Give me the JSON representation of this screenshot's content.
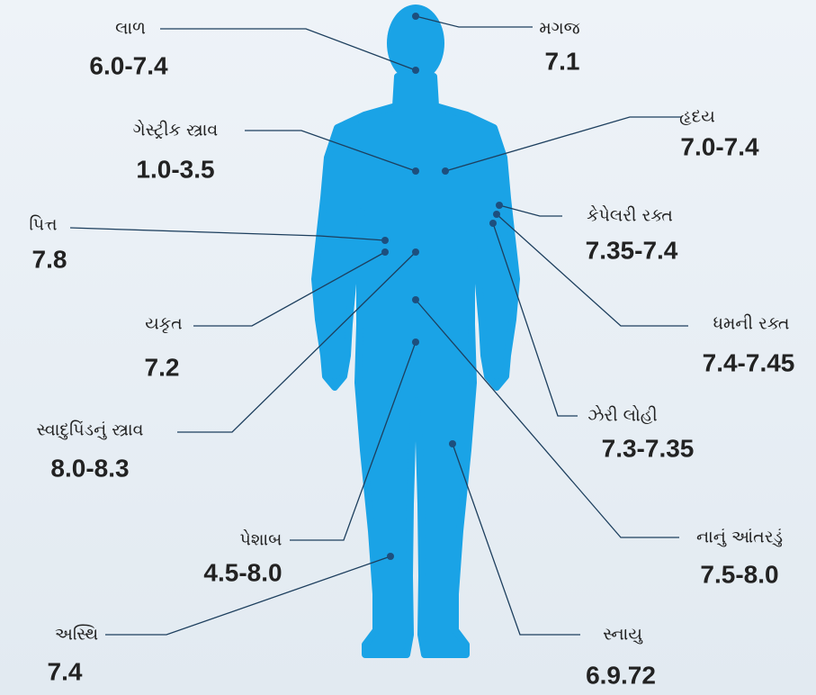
{
  "labels": [
    {
      "name": "લાળ",
      "value": "6.0-7.4"
    },
    {
      "name": "મગજ",
      "value": "7.1"
    },
    {
      "name": "ગેસ્ટ્રીક સ્ત્રાવ",
      "value": "1.0-3.5"
    },
    {
      "name": "હૃદય",
      "value": "7.0-7.4"
    },
    {
      "name": "પિત્ત",
      "value": "7.8"
    },
    {
      "name": "કેપેલરી રક્ત",
      "value": "7.35-7.4"
    },
    {
      "name": "ધમની રક્ત",
      "value": "7.4-7.45"
    },
    {
      "name": "યકૃત",
      "value": "7.2"
    },
    {
      "name": "ઝેરી લોહી",
      "value": "7.3-7.35"
    },
    {
      "name": "સ્વાદુપિંડનું સ્ત્રાવ",
      "value": "8.0-8.3"
    },
    {
      "name": "નાનું આંતરડું",
      "value": "7.5-8.0"
    },
    {
      "name": "પેશાબ",
      "value": "4.5-8.0"
    },
    {
      "name": "અસ્થિ",
      "value": "7.4"
    },
    {
      "name": "સ્નાયુ",
      "value": "6.9.72"
    }
  ]
}
